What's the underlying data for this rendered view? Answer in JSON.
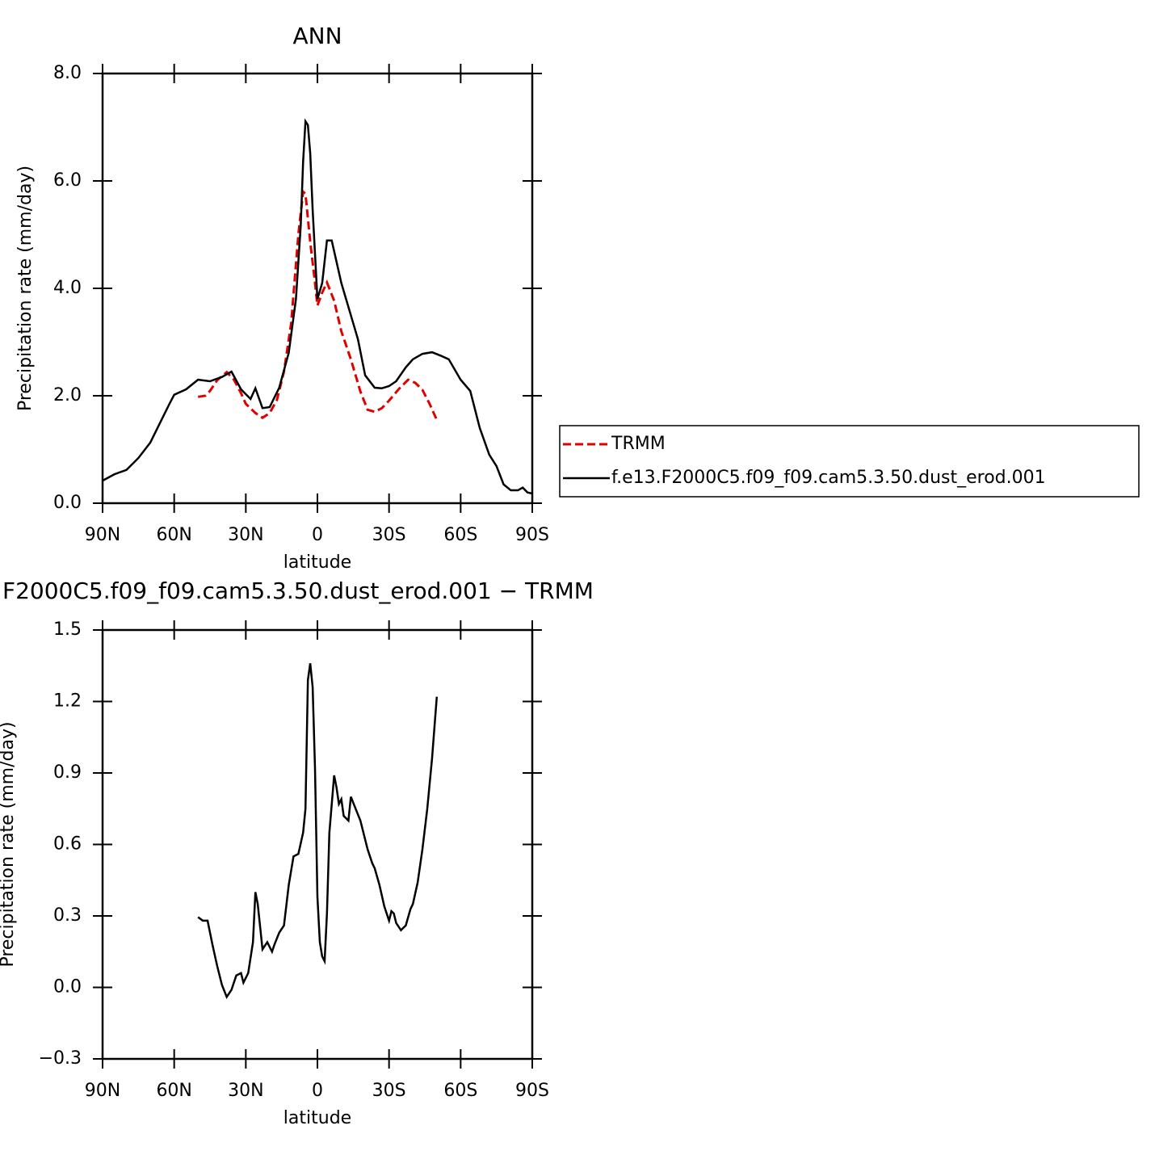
{
  "chart_data": [
    {
      "type": "line",
      "title": "ANN",
      "xlabel": "latitude",
      "ylabel": "Precipitation rate (mm/day)",
      "xlim": [
        90,
        -90
      ],
      "xticks": [
        {
          "value": 90,
          "label": "90N"
        },
        {
          "value": 60,
          "label": "60N"
        },
        {
          "value": 30,
          "label": "30N"
        },
        0,
        {
          "value": -30,
          "label": "30S"
        },
        {
          "value": -60,
          "label": "60S"
        },
        {
          "value": -90,
          "label": "90S"
        }
      ],
      "ylim": [
        0,
        8
      ],
      "yticks": [
        {
          "value": 0,
          "label": "0.0"
        },
        {
          "value": 2,
          "label": "2.0"
        },
        {
          "value": 4,
          "label": "4.0"
        },
        {
          "value": 6,
          "label": "6.0"
        },
        {
          "value": 8,
          "label": "8.0"
        }
      ],
      "legend": "right",
      "series": [
        {
          "name": "TRMM",
          "color": "#e00000",
          "dash": true,
          "x": [
            50,
            47,
            45,
            42,
            38,
            35,
            32,
            30,
            26,
            23,
            20,
            17,
            14,
            11,
            8,
            6,
            5,
            3,
            1,
            0,
            -2,
            -4,
            -7,
            -10,
            -14,
            -18,
            -21,
            -24,
            -27,
            -30,
            -34,
            -38,
            -41,
            -44,
            -47,
            -50
          ],
          "values": [
            1.98,
            2.0,
            2.09,
            2.29,
            2.44,
            2.3,
            2.05,
            1.85,
            1.68,
            1.59,
            1.68,
            1.92,
            2.45,
            3.35,
            5.0,
            5.8,
            5.76,
            4.86,
            4.11,
            3.68,
            3.92,
            4.11,
            3.77,
            3.2,
            2.68,
            2.08,
            1.74,
            1.7,
            1.77,
            1.91,
            2.12,
            2.3,
            2.24,
            2.11,
            1.85,
            1.55
          ]
        },
        {
          "name": "f.e13.F2000C5.f09_f09.cam5.3.50.dust_erod.001",
          "color": "#000000",
          "dash": false,
          "x": [
            90,
            85,
            80,
            75,
            70,
            65,
            62,
            60,
            55,
            50,
            45,
            40,
            36,
            32,
            28,
            26,
            23,
            20,
            16,
            12,
            9,
            7,
            6,
            5,
            4,
            3,
            2,
            0,
            -2,
            -4,
            -6,
            -10,
            -14,
            -17,
            -20,
            -24,
            -27,
            -30,
            -33,
            -37,
            -40,
            -44,
            -48,
            -52,
            -55,
            -60,
            -64,
            -68,
            -72,
            -75,
            -78,
            -81,
            -84,
            -86,
            -88,
            -90
          ],
          "values": [
            0.42,
            0.54,
            0.62,
            0.84,
            1.13,
            1.58,
            1.85,
            2.02,
            2.12,
            2.3,
            2.27,
            2.35,
            2.45,
            2.12,
            1.94,
            2.14,
            1.77,
            1.79,
            2.15,
            2.8,
            3.8,
            5.16,
            6.36,
            7.11,
            7.04,
            6.51,
            5.46,
            3.8,
            4.1,
            4.89,
            4.89,
            4.1,
            3.5,
            3.05,
            2.38,
            2.15,
            2.14,
            2.18,
            2.27,
            2.53,
            2.68,
            2.78,
            2.81,
            2.74,
            2.68,
            2.3,
            2.09,
            1.4,
            0.9,
            0.69,
            0.35,
            0.24,
            0.24,
            0.29,
            0.2,
            0.18
          ]
        }
      ]
    },
    {
      "type": "line",
      "title": "F2000C5.f09_f09.cam5.3.50.dust_erod.001 − TRMM",
      "xlabel": "latitude",
      "ylabel": "Precipitation rate (mm/day)",
      "xlim": [
        90,
        -90
      ],
      "xticks": [
        {
          "value": 90,
          "label": "90N"
        },
        {
          "value": 60,
          "label": "60N"
        },
        {
          "value": 30,
          "label": "30N"
        },
        0,
        {
          "value": -30,
          "label": "30S"
        },
        {
          "value": -60,
          "label": "60S"
        },
        {
          "value": -90,
          "label": "90S"
        }
      ],
      "ylim": [
        -0.3,
        1.5
      ],
      "yticks": [
        {
          "value": -0.3,
          "label": "−0.3"
        },
        {
          "value": 0,
          "label": "0.0"
        },
        0.3,
        0.6,
        0.9,
        1.2,
        1.5
      ],
      "series": [
        {
          "color": "#000000",
          "dash": false,
          "x": [
            50,
            48,
            46,
            44,
            42,
            40,
            38,
            36,
            34,
            32,
            31,
            29,
            27,
            26,
            25,
            23,
            21,
            19,
            18,
            16,
            14,
            12,
            10,
            8,
            6,
            5,
            4,
            3,
            2,
            1,
            0,
            -1,
            -2,
            -3,
            -4,
            -5,
            -7,
            -8,
            -9,
            -10,
            -11,
            -13,
            -14,
            -16,
            -18,
            -21,
            -23,
            -24,
            -26,
            -28,
            -30,
            -31,
            -32,
            -33,
            -35,
            -37,
            -39,
            -40,
            -42,
            -44,
            -46,
            -48,
            -50
          ],
          "values": [
            0.295,
            0.28,
            0.28,
            0.18,
            0.09,
            0.01,
            -0.04,
            -0.01,
            0.05,
            0.06,
            0.02,
            0.06,
            0.19,
            0.4,
            0.35,
            0.16,
            0.19,
            0.15,
            0.18,
            0.23,
            0.26,
            0.43,
            0.55,
            0.56,
            0.65,
            0.75,
            1.29,
            1.36,
            1.26,
            0.92,
            0.38,
            0.19,
            0.13,
            0.11,
            0.31,
            0.65,
            0.89,
            0.84,
            0.77,
            0.79,
            0.72,
            0.7,
            0.8,
            0.75,
            0.7,
            0.58,
            0.52,
            0.5,
            0.43,
            0.34,
            0.28,
            0.32,
            0.31,
            0.27,
            0.24,
            0.26,
            0.33,
            0.35,
            0.44,
            0.58,
            0.75,
            0.96,
            1.22
          ]
        }
      ]
    }
  ]
}
